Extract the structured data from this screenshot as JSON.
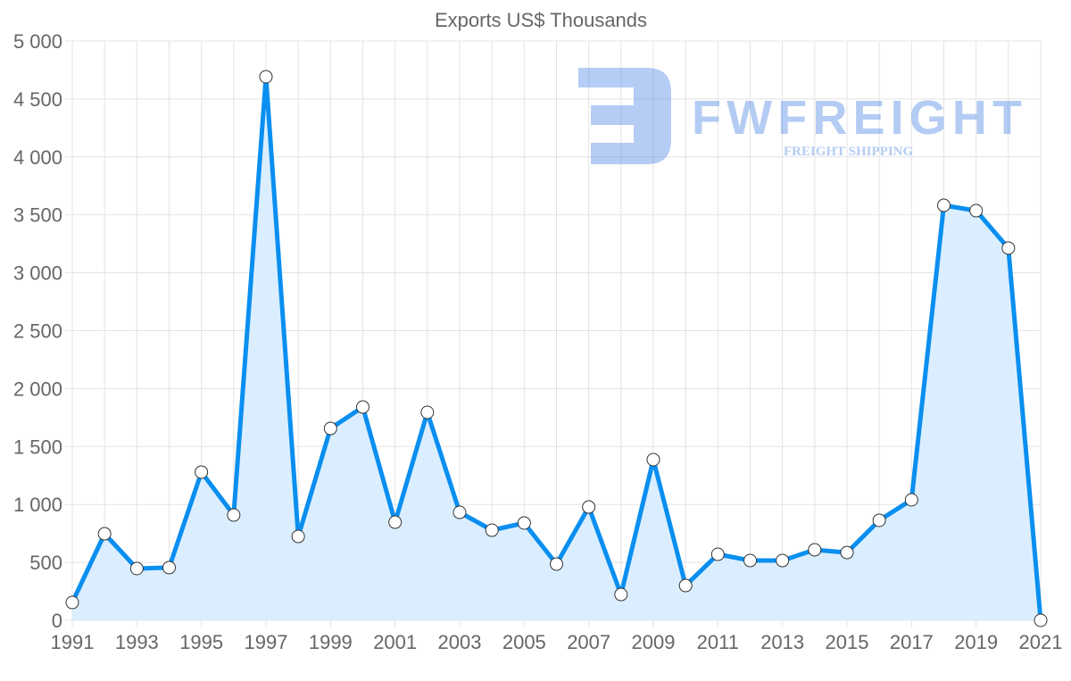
{
  "chart_data": {
    "type": "line",
    "title": "Exports US$ Thousands",
    "xlabel": "",
    "ylabel": "",
    "x": [
      1991,
      1992,
      1993,
      1994,
      1995,
      1996,
      1997,
      1998,
      1999,
      2000,
      2001,
      2002,
      2003,
      2004,
      2005,
      2006,
      2007,
      2008,
      2009,
      2010,
      2011,
      2012,
      2013,
      2014,
      2015,
      2016,
      2017,
      2018,
      2019,
      2020,
      2021
    ],
    "series": [
      {
        "name": "Exports US$ Thousands",
        "values": [
          154,
          747,
          447,
          455,
          1279,
          909,
          4692,
          724,
          1656,
          1841,
          847,
          1795,
          932,
          778,
          840,
          485,
          978,
          223,
          1387,
          300,
          570,
          516,
          516,
          609,
          585,
          863,
          1040,
          3582,
          3536,
          3213,
          0
        ]
      }
    ],
    "x_ticks": [
      "1991",
      "1993",
      "1995",
      "1997",
      "1999",
      "2001",
      "2003",
      "2005",
      "2007",
      "2009",
      "2011",
      "2013",
      "2015",
      "2017",
      "2019",
      "2021"
    ],
    "y_ticks": [
      {
        "value": 0,
        "label": "0"
      },
      {
        "value": 500,
        "label": "500"
      },
      {
        "value": 1000,
        "label": "1 000"
      },
      {
        "value": 1500,
        "label": "1 500"
      },
      {
        "value": 2000,
        "label": "2 000"
      },
      {
        "value": 2500,
        "label": "2 500"
      },
      {
        "value": 3000,
        "label": "3 000"
      },
      {
        "value": 3500,
        "label": "3 500"
      },
      {
        "value": 4000,
        "label": "4 000"
      },
      {
        "value": 4500,
        "label": "4 500"
      },
      {
        "value": 5000,
        "label": "5 000"
      }
    ],
    "ylim": [
      0,
      5000
    ],
    "xlim": [
      1991,
      2021
    ],
    "grid": true,
    "fill": true,
    "colors": {
      "line": "#0a8ff0",
      "fill": "#dbeeff",
      "grid": "#e3e3e3",
      "point": "#ffffff"
    }
  },
  "watermark": {
    "brand": "FWFREIGHT",
    "tagline": "FREIGHT SHIPPING"
  }
}
